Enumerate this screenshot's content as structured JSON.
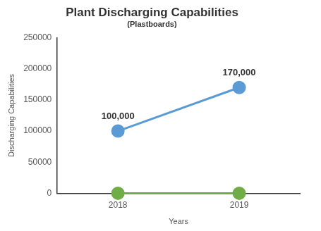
{
  "chart_data": {
    "type": "line",
    "title": "Plant Discharging Capabilities",
    "subtitle": "(Plastboards)",
    "x_label": "Years",
    "y_label": "Discharging Capabilities",
    "categories": [
      "2018",
      "2019"
    ],
    "series": [
      {
        "color": "#5b9bd5",
        "values": [
          100000,
          170000
        ],
        "marker": "circle",
        "line_style": "solid",
        "data_labels": true,
        "value_labels": [
          "100,000",
          "170,000"
        ]
      },
      {
        "color": "#70ad47",
        "values": [
          0,
          0
        ],
        "marker": "circle",
        "line_style": "solid",
        "data_labels": false
      }
    ],
    "ylim": [
      0,
      250000
    ],
    "yticks": [
      0,
      50000,
      100000,
      150000,
      200000,
      250000
    ],
    "grid": false
  }
}
